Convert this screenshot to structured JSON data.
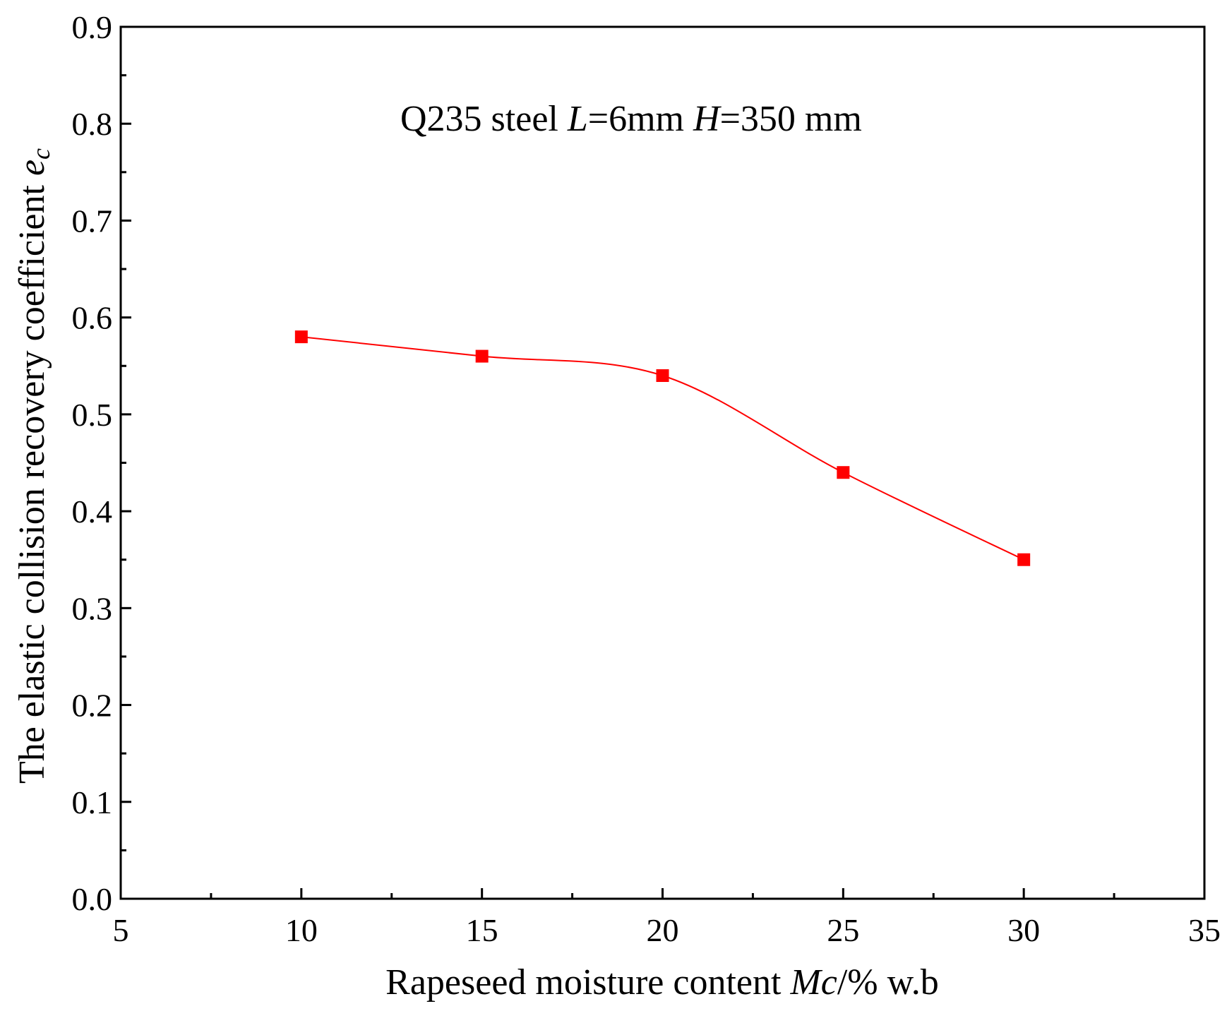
{
  "chart_data": {
    "type": "line",
    "title": "",
    "annotation": {
      "prefix": "Q235 steel ",
      "L_symbol": "L",
      "L_value": "=6mm ",
      "H_symbol": "H",
      "H_value": "=350 mm"
    },
    "xlabel": {
      "text": "Rapeseed moisture content ",
      "symbol": "Mc",
      "suffix": "/% w.b"
    },
    "ylabel": {
      "text": "The elastic collision recovery coefficient ",
      "symbol": "e",
      "subscript": "c"
    },
    "xlim": [
      5,
      35
    ],
    "ylim": [
      0.0,
      0.9
    ],
    "xticks": [
      5,
      10,
      15,
      20,
      25,
      30,
      35
    ],
    "yticks": [
      "0.0",
      "0.1",
      "0.2",
      "0.3",
      "0.4",
      "0.5",
      "0.6",
      "0.7",
      "0.8",
      "0.9"
    ],
    "grid": false,
    "series": [
      {
        "name": "Q235 steel",
        "color": "#ff0000",
        "marker": "square",
        "x": [
          10,
          15,
          20,
          25,
          30
        ],
        "y": [
          0.58,
          0.56,
          0.54,
          0.44,
          0.35
        ]
      }
    ]
  }
}
